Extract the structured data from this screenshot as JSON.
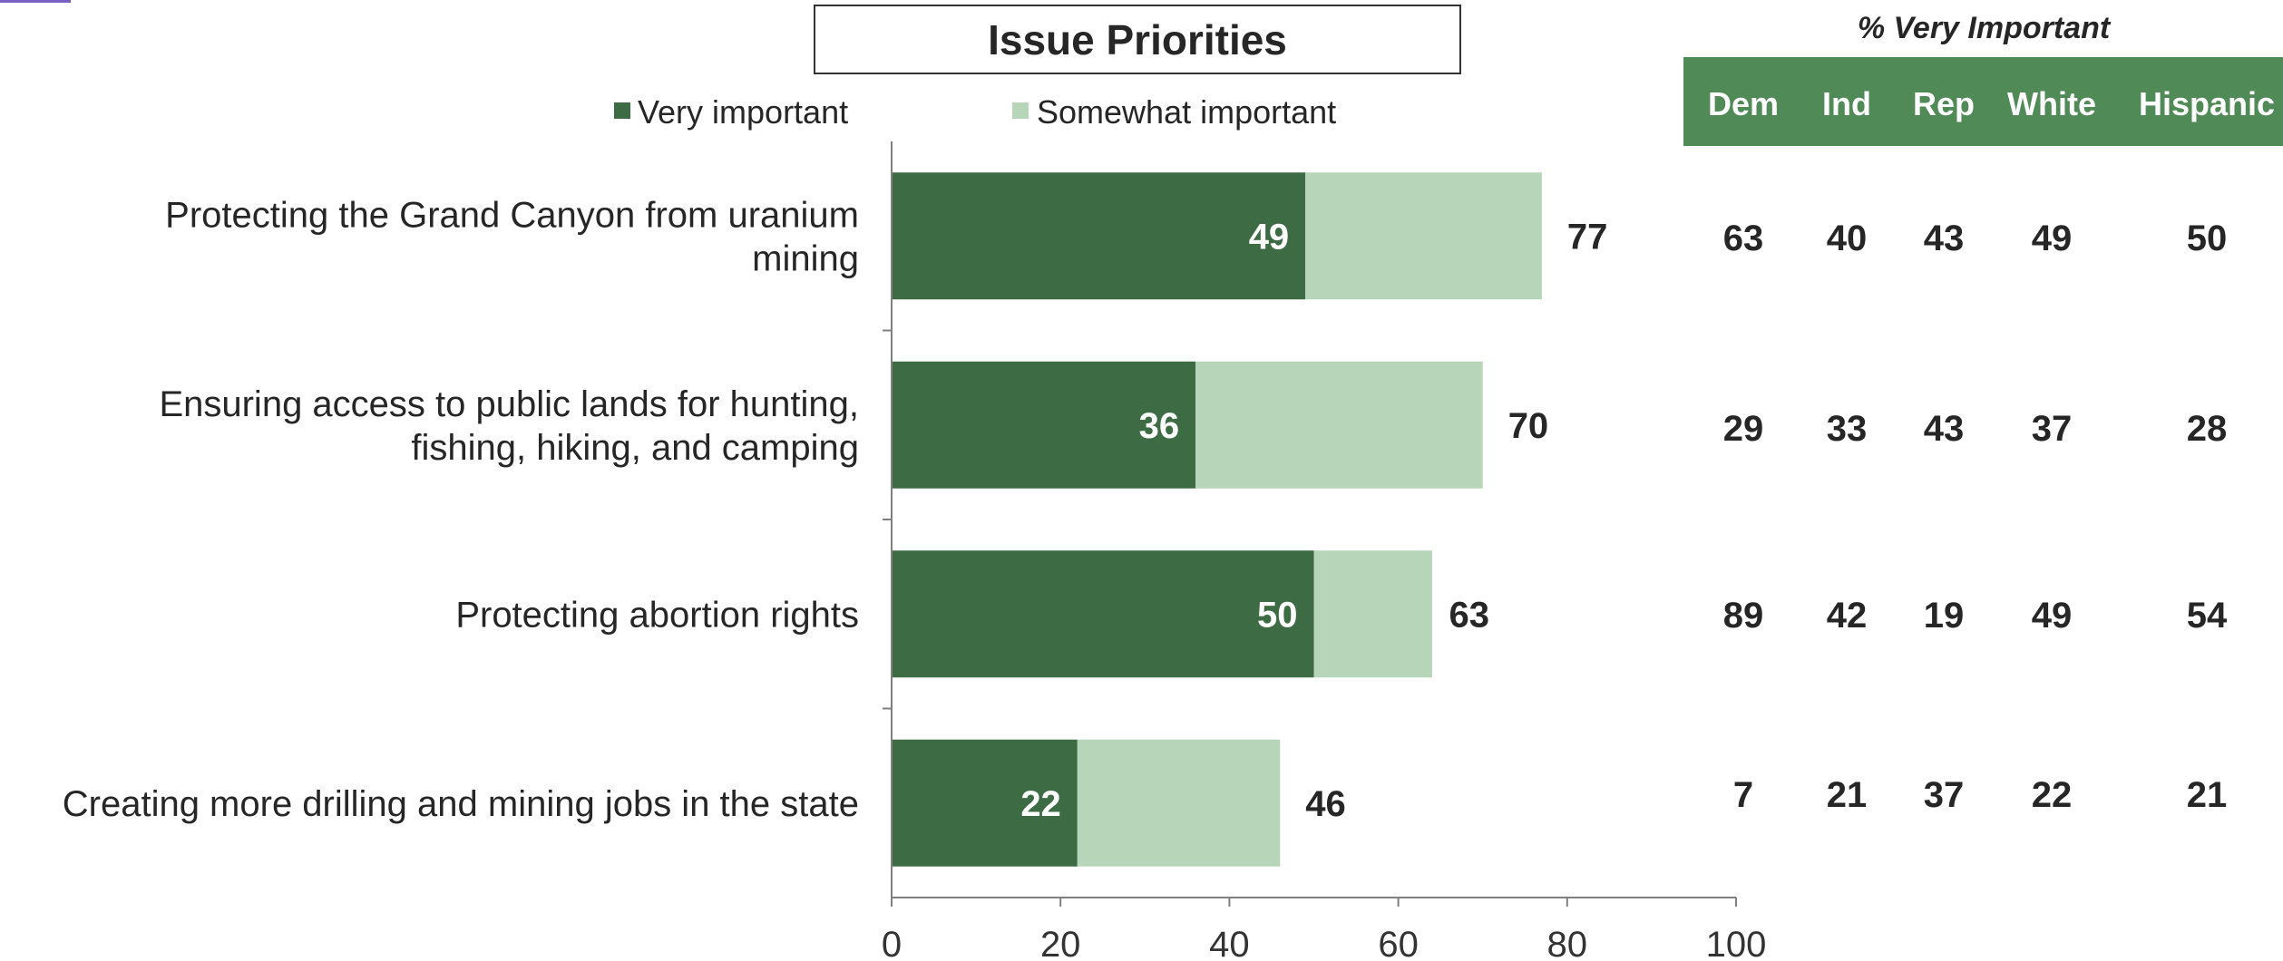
{
  "chart_data": {
    "type": "bar",
    "orientation": "horizontal",
    "stacked": true,
    "title": "Issue Priorities",
    "categories": [
      [
        "Protecting the Grand Canyon from uranium",
        "mining"
      ],
      [
        "Ensuring access to public lands for hunting,",
        "fishing, hiking, and camping"
      ],
      [
        "Protecting abortion rights"
      ],
      [
        "Creating more drilling and mining jobs in the state"
      ]
    ],
    "series": [
      {
        "name": "Very important",
        "values": [
          49,
          36,
          50,
          22
        ],
        "color": "#3d6b43"
      },
      {
        "name": "Somewhat important",
        "values": [
          28,
          34,
          14,
          24
        ],
        "color": "#b6d5b9"
      }
    ],
    "totals": [
      77,
      70,
      63,
      46
    ],
    "xlim": [
      0,
      100
    ],
    "xticks": [
      0,
      20,
      40,
      60,
      80,
      100
    ],
    "legend_position": "top",
    "grid": false
  },
  "table": {
    "title": "% Very Important",
    "header_color": "#4f8a57",
    "columns": [
      "Dem",
      "Ind",
      "Rep",
      "White",
      "Hispanic"
    ],
    "rows": [
      [
        "63",
        "40",
        "43",
        "49",
        "50"
      ],
      [
        "29",
        "33",
        "43",
        "37",
        "28"
      ],
      [
        "89",
        "42",
        "19",
        "49",
        "54"
      ],
      [
        "7",
        "21",
        "37",
        "22",
        "21"
      ]
    ]
  }
}
